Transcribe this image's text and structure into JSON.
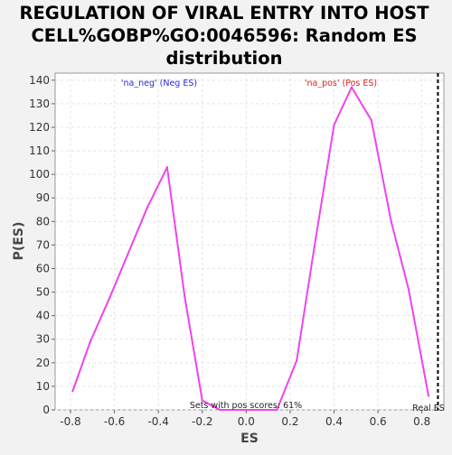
{
  "chart_data": {
    "type": "line",
    "title_lines": [
      "REGULATION OF VIRAL ENTRY INTO HOST",
      "CELL%GOBP%GO:0046596: Random ES",
      "distribution"
    ],
    "xlabel": "ES",
    "ylabel": "P(ES)",
    "xlim": [
      -0.87,
      0.9
    ],
    "ylim": [
      0,
      143
    ],
    "x_ticks": [
      -0.8,
      -0.6,
      -0.4,
      -0.2,
      0.0,
      0.2,
      0.4,
      0.6,
      0.8
    ],
    "x_tick_labels": [
      "-0.8",
      "-0.6",
      "-0.4",
      "-0.2",
      "0.0",
      "0.2",
      "0.4",
      "0.6",
      "0.8"
    ],
    "y_ticks": [
      0,
      10,
      20,
      30,
      40,
      50,
      60,
      70,
      80,
      90,
      100,
      110,
      120,
      130,
      140
    ],
    "y_tick_labels": [
      "0",
      "10",
      "20",
      "30",
      "40",
      "50",
      "60",
      "70",
      "80",
      "90",
      "100",
      "110",
      "120",
      "130",
      "140"
    ],
    "grid": true,
    "series": [
      {
        "color": "#ee44ee",
        "x": [
          -0.79,
          -0.71,
          -0.62,
          -0.45,
          -0.36,
          -0.28,
          -0.2,
          -0.12,
          0.14,
          0.23,
          0.31,
          0.4,
          0.48,
          0.57,
          0.66,
          0.74,
          0.83
        ],
        "y": [
          8,
          29,
          48,
          86,
          103,
          48,
          4,
          0,
          0,
          21,
          69,
          121,
          137,
          123,
          80,
          51,
          6
        ]
      }
    ],
    "legend": {
      "neg_label": "'na_neg' (Neg ES)",
      "pos_label": "'na_pos' (Pos ES)",
      "neg_color": "#2a2ad0",
      "pos_color": "#e02020"
    },
    "real_es": {
      "x": 0.873,
      "label": "Real ES"
    },
    "annotation": "Sets with pos scores: 61%"
  }
}
